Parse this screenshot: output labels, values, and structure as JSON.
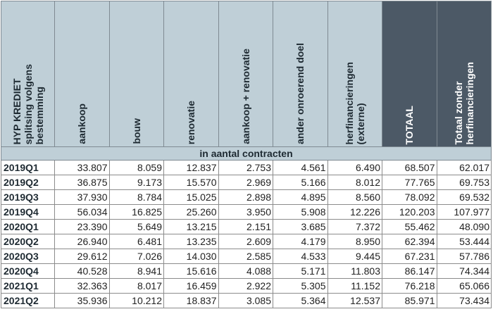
{
  "table": {
    "headers": [
      "HYP KREDIET\nsplitsing volgens\nbestemming",
      "aankoop",
      "bouw",
      "renovatie",
      "aankoop + renovatie",
      "ander onroerend doel",
      "herfinancieringen\n(externe)",
      "TOTAAL",
      "Totaal zonder\nherfinancieringen"
    ],
    "subheader": "in aantal contracten",
    "rows": [
      [
        "2019Q1",
        "33.807",
        "8.059",
        "12.837",
        "2.753",
        "4.561",
        "6.490",
        "68.507",
        "62.017"
      ],
      [
        "2019Q2",
        "36.875",
        "9.173",
        "15.570",
        "2.969",
        "5.166",
        "8.012",
        "77.765",
        "69.753"
      ],
      [
        "2019Q3",
        "37.930",
        "8.784",
        "15.025",
        "2.898",
        "4.895",
        "8.560",
        "78.092",
        "69.532"
      ],
      [
        "2019Q4",
        "56.034",
        "16.825",
        "25.260",
        "3.950",
        "5.908",
        "12.226",
        "120.203",
        "107.977"
      ],
      [
        "2020Q1",
        "23.390",
        "5.649",
        "13.215",
        "2.151",
        "3.685",
        "7.372",
        "55.462",
        "48.090"
      ],
      [
        "2020Q2",
        "26.940",
        "6.481",
        "13.235",
        "2.609",
        "4.179",
        "8.950",
        "62.394",
        "53.444"
      ],
      [
        "2020Q3",
        "29.612",
        "7.026",
        "14.030",
        "2.585",
        "4.533",
        "9.445",
        "67.231",
        "57.786"
      ],
      [
        "2020Q4",
        "40.528",
        "8.941",
        "15.616",
        "4.088",
        "5.171",
        "11.803",
        "86.147",
        "74.344"
      ],
      [
        "2021Q1",
        "32.363",
        "8.017",
        "16.459",
        "2.922",
        "5.305",
        "11.152",
        "76.218",
        "65.066"
      ],
      [
        "2021Q2",
        "35.936",
        "10.212",
        "18.837",
        "3.085",
        "5.364",
        "12.537",
        "85.971",
        "73.434"
      ]
    ]
  }
}
